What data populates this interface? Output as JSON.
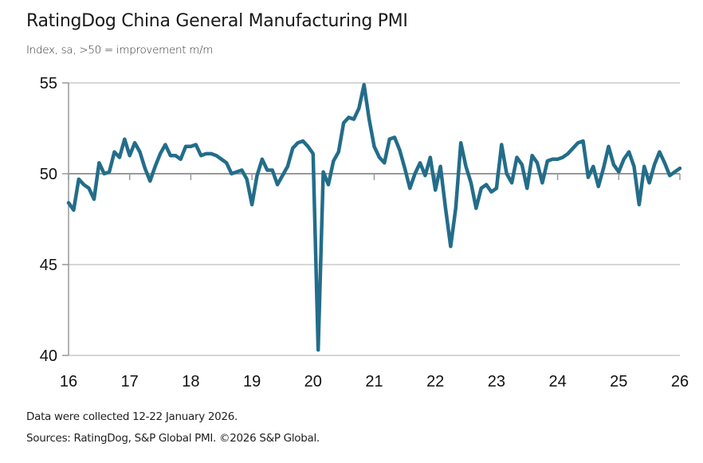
{
  "header": {
    "title": "RatingDog China General Manufacturing PMI",
    "subtitle": "Index, sa, >50 = improvement m/m"
  },
  "footer": {
    "note": "Data were collected 12-22 January 2026.",
    "sources": "Sources: RatingDog, S&P Global PMI. ©2026 S&P Global."
  },
  "colors": {
    "line": "#236d8a",
    "grid": "#c8c8c8",
    "axis": "#999999"
  },
  "chart_data": {
    "type": "line",
    "title": "RatingDog China General Manufacturing PMI",
    "subtitle": "Index, sa, >50 = improvement m/m",
    "xlabel": "",
    "ylabel": "",
    "ylim": [
      40,
      55
    ],
    "yticks": [
      40,
      45,
      50,
      55
    ],
    "x_start": "2016-01",
    "x_end": "2026-01",
    "xtick_labels": [
      "16",
      "17",
      "18",
      "19",
      "20",
      "21",
      "22",
      "23",
      "24",
      "25",
      "26"
    ],
    "grid": true,
    "legend": "none",
    "series": [
      {
        "name": "RatingDog China General Manufacturing PMI",
        "frequency": "monthly",
        "start": "2016-01",
        "values": [
          48.4,
          48.0,
          49.7,
          49.4,
          49.2,
          48.6,
          50.6,
          50.0,
          50.1,
          51.2,
          50.9,
          51.9,
          51.0,
          51.7,
          51.2,
          50.3,
          49.6,
          50.4,
          51.1,
          51.6,
          51.0,
          51.0,
          50.8,
          51.5,
          51.5,
          51.6,
          51.0,
          51.1,
          51.1,
          51.0,
          50.8,
          50.6,
          50.0,
          50.1,
          50.2,
          49.7,
          48.3,
          49.9,
          50.8,
          50.2,
          50.2,
          49.4,
          49.9,
          50.4,
          51.4,
          51.7,
          51.8,
          51.5,
          51.1,
          40.3,
          50.1,
          49.4,
          50.7,
          51.2,
          52.8,
          53.1,
          53.0,
          53.6,
          54.9,
          53.0,
          51.5,
          50.9,
          50.6,
          51.9,
          52.0,
          51.3,
          50.3,
          49.2,
          50.0,
          50.6,
          49.9,
          50.9,
          49.1,
          50.4,
          48.1,
          46.0,
          48.1,
          51.7,
          50.4,
          49.5,
          48.1,
          49.2,
          49.4,
          49.0,
          49.2,
          51.6,
          50.0,
          49.5,
          50.9,
          50.5,
          49.2,
          51.0,
          50.6,
          49.5,
          50.7,
          50.8,
          50.8,
          50.9,
          51.1,
          51.4,
          51.7,
          51.8,
          49.8,
          50.4,
          49.3,
          50.3,
          51.5,
          50.5,
          50.1,
          50.8,
          51.2,
          50.4,
          48.3,
          50.4,
          49.5,
          50.5,
          51.2,
          50.6,
          49.9,
          50.1,
          50.3
        ]
      }
    ]
  }
}
